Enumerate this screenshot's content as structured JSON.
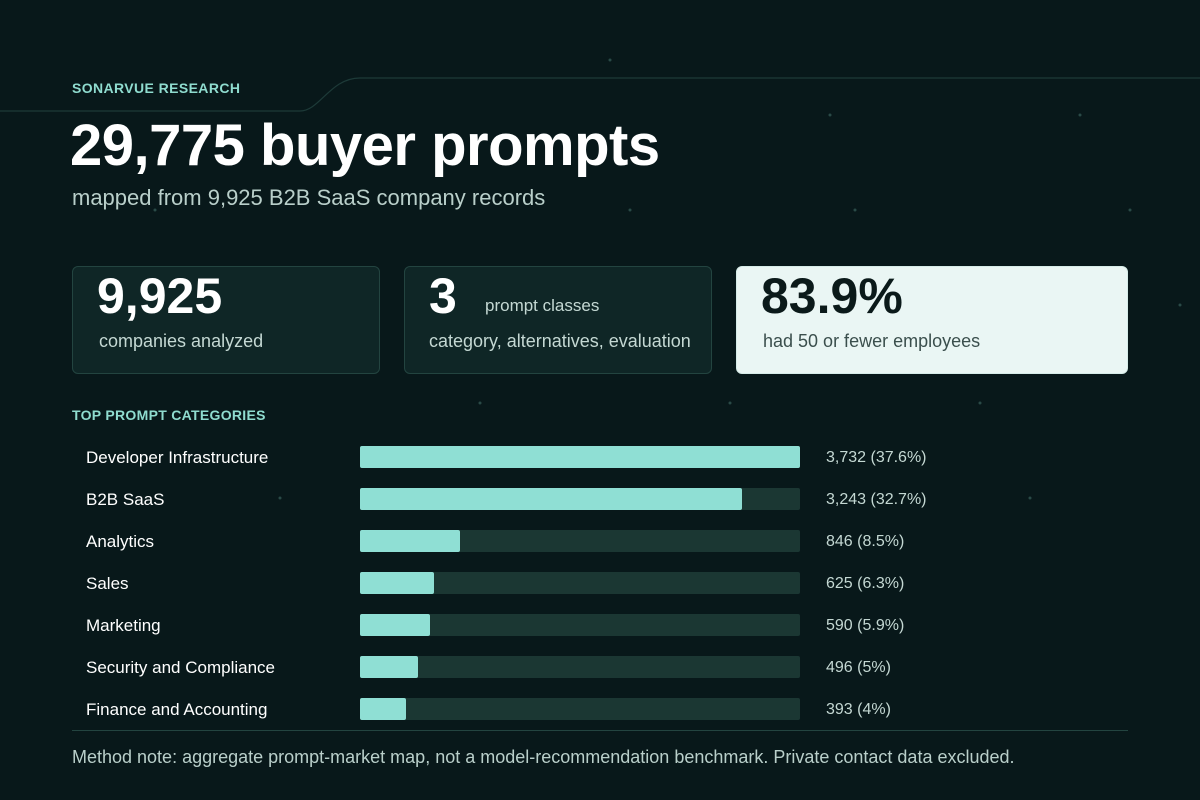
{
  "header": {
    "eyebrow": "SONARVUE RESEARCH",
    "headline": "29,775 buyer prompts",
    "subhead": "mapped from 9,925 B2B SaaS company records"
  },
  "cards": [
    {
      "value": "9,925",
      "inline_label": "",
      "label": "companies analyzed"
    },
    {
      "value": "3",
      "inline_label": "prompt classes",
      "label": "category, alternatives, evaluation"
    },
    {
      "value": "83.9%",
      "inline_label": "",
      "label": "had 50 or fewer employees"
    }
  ],
  "section_title": "TOP PROMPT CATEGORIES",
  "chart_data": {
    "type": "bar",
    "orientation": "horizontal",
    "title": "TOP PROMPT CATEGORIES",
    "categories": [
      "Developer Infrastructure",
      "B2B SaaS",
      "Analytics",
      "Sales",
      "Marketing",
      "Security and Compliance",
      "Finance and Accounting"
    ],
    "values": [
      3732,
      3243,
      846,
      625,
      590,
      496,
      393
    ],
    "value_labels": [
      "3,732 (37.6%)",
      "3,243 (32.7%)",
      "846 (8.5%)",
      "625 (6.3%)",
      "590 (5.9%)",
      "496 (5%)",
      "393 (4%)"
    ],
    "xlim": [
      0,
      3732
    ],
    "grid": false,
    "colors": {
      "bar": "#8fdfd4",
      "track": "#1b3733"
    }
  },
  "footer": {
    "method_note": "Method note: aggregate prompt-market map, not a model-recommendation benchmark. Private contact data excluded."
  },
  "colors": {
    "background": "#08181a",
    "accent": "#8fdccf",
    "highlight_card": "#eaf6f4"
  }
}
